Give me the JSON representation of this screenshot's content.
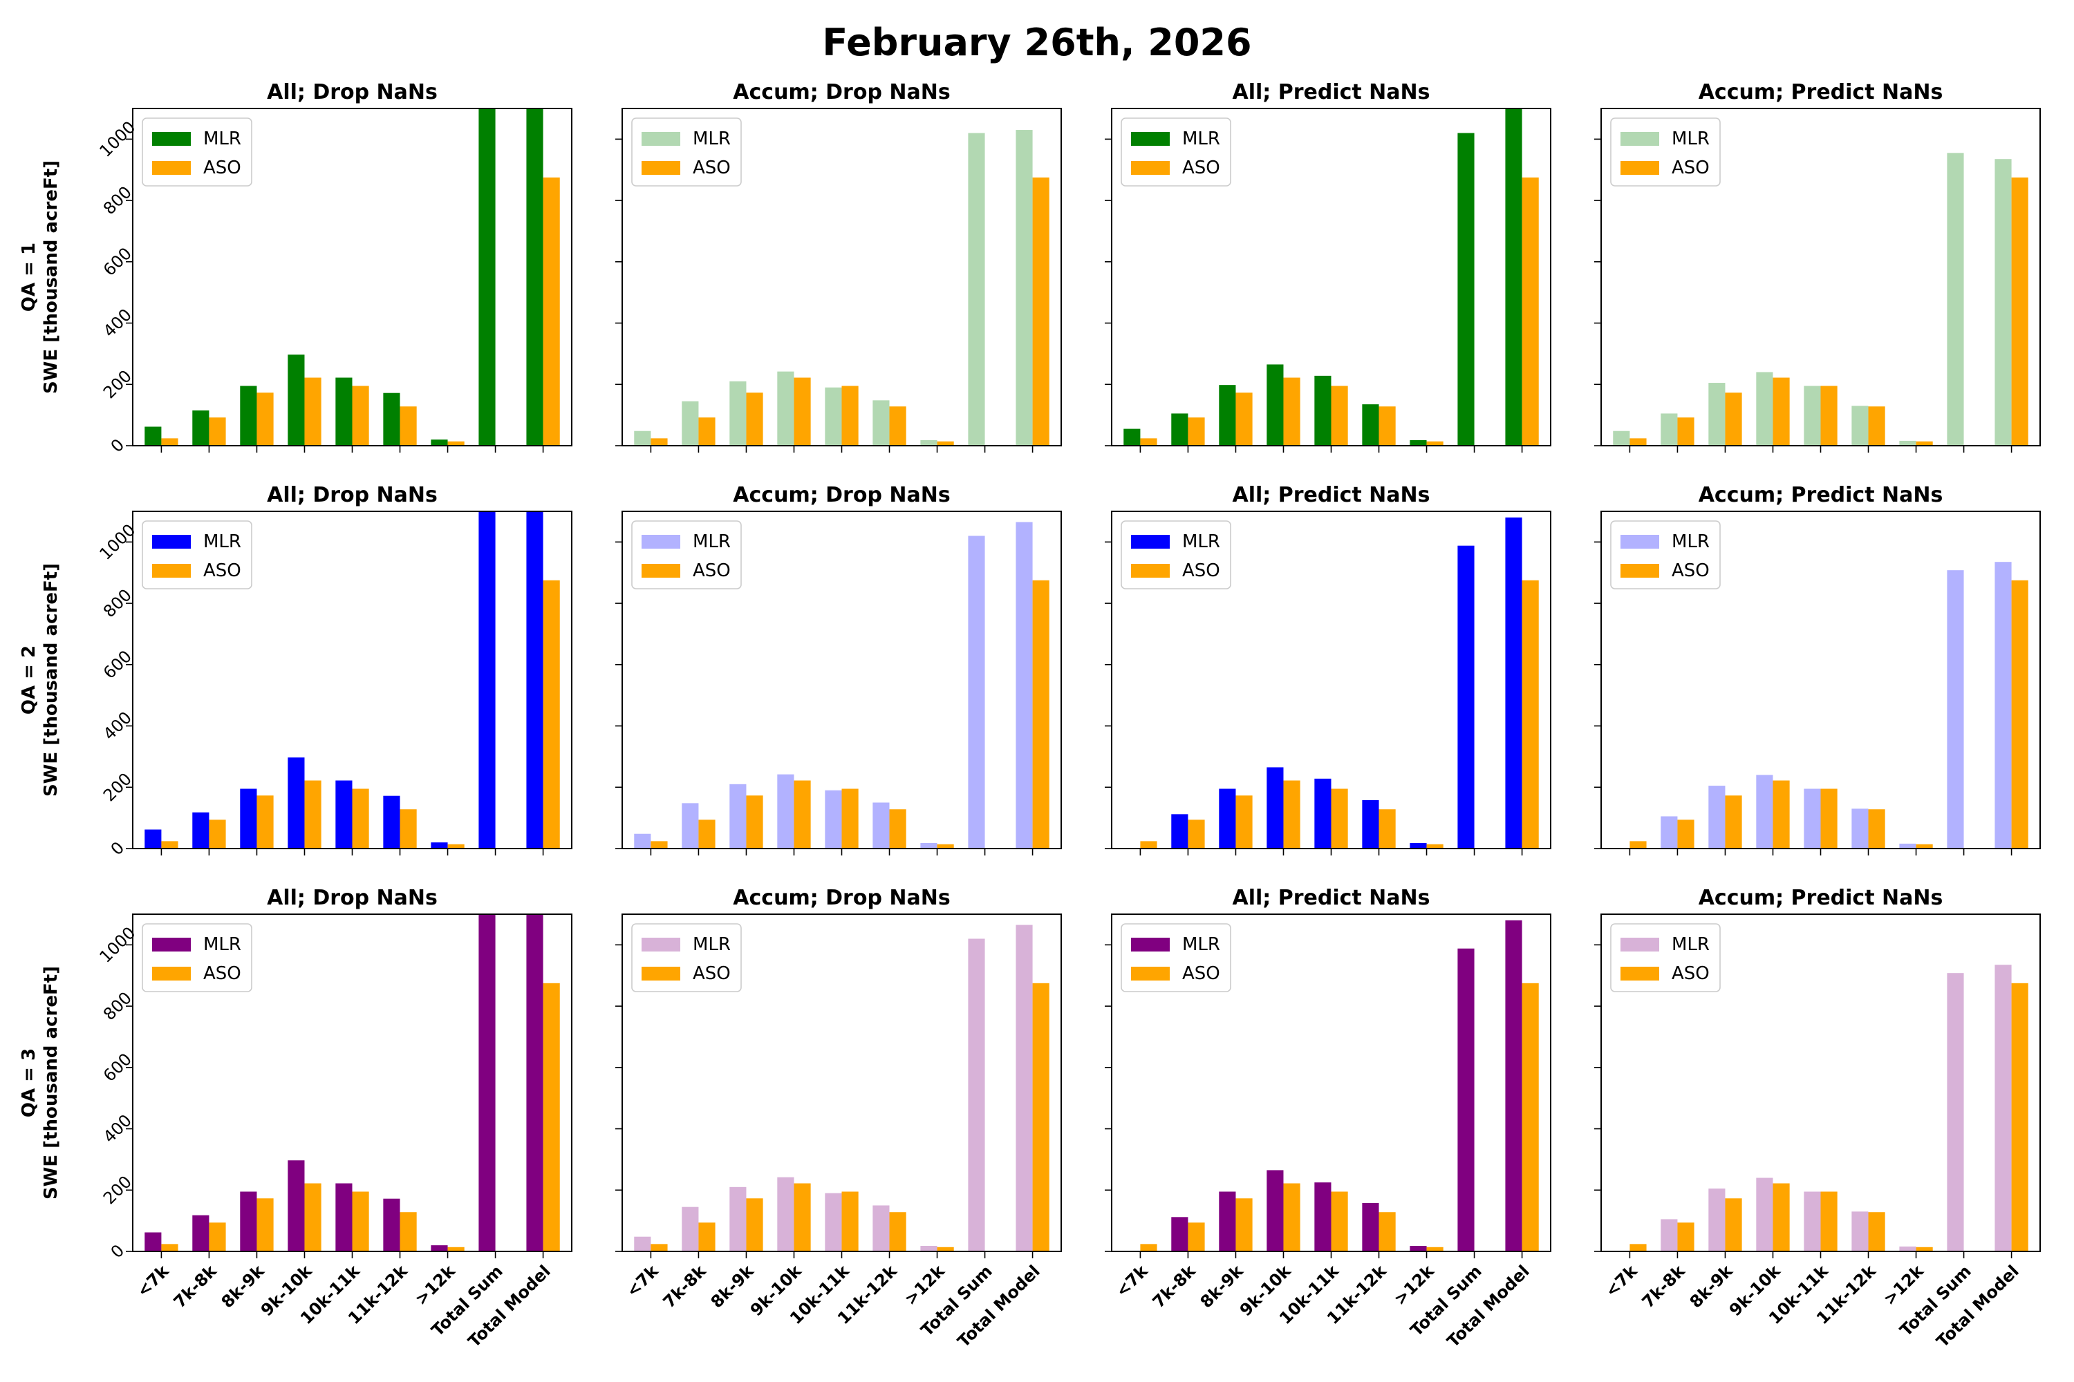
{
  "figure": {
    "title": "February 26th, 2026",
    "legend_labels": {
      "mlr": "MLR",
      "aso": "ASO"
    },
    "row_labels": [
      [
        "QA = 1",
        "SWE [thousand acreFt]"
      ],
      [
        "QA = 2",
        "SWE [thousand acreFt]"
      ],
      [
        "QA = 3",
        "SWE [thousand acreFt]"
      ]
    ],
    "column_titles": [
      "All; Drop NaNs",
      "Accum; Drop NaNs",
      "All; Predict NaNs",
      "Accum; Predict NaNs"
    ],
    "colors": {
      "aso": "#ffa500",
      "mlr_rows_dark": [
        "#008000",
        "#0000ff",
        "#800080"
      ],
      "mlr_rows_light": [
        "#b2d8b2",
        "#b2b2ff",
        "#d8b2d8"
      ]
    }
  },
  "chart_data": {
    "type": "bar",
    "categories": [
      "<7k",
      "7k-8k",
      "8k-9k",
      "9k-10k",
      "10k-11k",
      "11k-12k",
      ">12k",
      "Total Sum",
      "Total Model"
    ],
    "ylim": [
      0,
      1100
    ],
    "yticks": [
      0,
      200,
      400,
      600,
      800,
      1000
    ],
    "ylabel": "SWE [thousand acreFt]",
    "legend_position": "upper-left",
    "grid": false,
    "panels": [
      {
        "row": 0,
        "col": 0,
        "title": "All; Drop NaNs",
        "mlr_tone": "dark",
        "series": [
          {
            "name": "MLR",
            "values": [
              62,
              115,
              195,
              297,
              222,
              172,
              20,
              1100,
              1100
            ]
          },
          {
            "name": "ASO",
            "values": [
              24,
              92,
              173,
              222,
              195,
              128,
              14,
              0,
              875
            ]
          }
        ]
      },
      {
        "row": 0,
        "col": 1,
        "title": "Accum; Drop NaNs",
        "mlr_tone": "light",
        "series": [
          {
            "name": "MLR",
            "values": [
              48,
              145,
              210,
              242,
              190,
              148,
              18,
              1020,
              1030
            ]
          },
          {
            "name": "ASO",
            "values": [
              24,
              92,
              173,
              222,
              195,
              128,
              14,
              0,
              875
            ]
          }
        ]
      },
      {
        "row": 0,
        "col": 2,
        "title": "All; Predict NaNs",
        "mlr_tone": "dark",
        "series": [
          {
            "name": "MLR",
            "values": [
              55,
              105,
              198,
              265,
              228,
              135,
              18,
              1020,
              1100
            ]
          },
          {
            "name": "ASO",
            "values": [
              24,
              92,
              173,
              222,
              195,
              128,
              14,
              0,
              875
            ]
          }
        ]
      },
      {
        "row": 0,
        "col": 3,
        "title": "Accum; Predict NaNs",
        "mlr_tone": "light",
        "series": [
          {
            "name": "MLR",
            "values": [
              48,
              105,
              205,
              240,
              195,
              130,
              16,
              955,
              935
            ]
          },
          {
            "name": "ASO",
            "values": [
              24,
              92,
              173,
              222,
              195,
              128,
              14,
              0,
              875
            ]
          }
        ]
      },
      {
        "row": 1,
        "col": 0,
        "title": "All; Drop NaNs",
        "mlr_tone": "dark",
        "series": [
          {
            "name": "MLR",
            "values": [
              62,
              118,
              195,
              297,
              222,
              172,
              20,
              1100,
              1100
            ]
          },
          {
            "name": "ASO",
            "values": [
              24,
              94,
              173,
              222,
              195,
              128,
              14,
              0,
              875
            ]
          }
        ]
      },
      {
        "row": 1,
        "col": 1,
        "title": "Accum; Drop NaNs",
        "mlr_tone": "light",
        "series": [
          {
            "name": "MLR",
            "values": [
              48,
              148,
              210,
              242,
              190,
              150,
              18,
              1020,
              1065
            ]
          },
          {
            "name": "ASO",
            "values": [
              24,
              94,
              173,
              222,
              195,
              128,
              14,
              0,
              875
            ]
          }
        ]
      },
      {
        "row": 1,
        "col": 2,
        "title": "All; Predict NaNs",
        "mlr_tone": "dark",
        "series": [
          {
            "name": "MLR",
            "values": [
              0,
              112,
              195,
              265,
              228,
              158,
              18,
              988,
              1080
            ]
          },
          {
            "name": "ASO",
            "values": [
              24,
              94,
              173,
              222,
              195,
              128,
              14,
              0,
              875
            ]
          }
        ]
      },
      {
        "row": 1,
        "col": 3,
        "title": "Accum; Predict NaNs",
        "mlr_tone": "light",
        "series": [
          {
            "name": "MLR",
            "values": [
              0,
              105,
              205,
              240,
              195,
              130,
              16,
              908,
              935
            ]
          },
          {
            "name": "ASO",
            "values": [
              24,
              94,
              173,
              222,
              195,
              128,
              14,
              0,
              875
            ]
          }
        ]
      },
      {
        "row": 2,
        "col": 0,
        "title": "All; Drop NaNs",
        "mlr_tone": "dark",
        "series": [
          {
            "name": "MLR",
            "values": [
              62,
              118,
              195,
              297,
              222,
              172,
              20,
              1100,
              1100
            ]
          },
          {
            "name": "ASO",
            "values": [
              24,
              94,
              173,
              222,
              195,
              128,
              14,
              0,
              875
            ]
          }
        ]
      },
      {
        "row": 2,
        "col": 1,
        "title": "Accum; Drop NaNs",
        "mlr_tone": "light",
        "series": [
          {
            "name": "MLR",
            "values": [
              48,
              145,
              210,
              242,
              190,
              150,
              18,
              1020,
              1065
            ]
          },
          {
            "name": "ASO",
            "values": [
              24,
              94,
              173,
              222,
              195,
              128,
              14,
              0,
              875
            ]
          }
        ]
      },
      {
        "row": 2,
        "col": 2,
        "title": "All; Predict NaNs",
        "mlr_tone": "dark",
        "series": [
          {
            "name": "MLR",
            "values": [
              0,
              112,
              195,
              265,
              225,
              158,
              18,
              988,
              1080
            ]
          },
          {
            "name": "ASO",
            "values": [
              24,
              94,
              173,
              222,
              195,
              128,
              14,
              0,
              875
            ]
          }
        ]
      },
      {
        "row": 2,
        "col": 3,
        "title": "Accum; Predict NaNs",
        "mlr_tone": "light",
        "series": [
          {
            "name": "MLR",
            "values": [
              0,
              105,
              205,
              240,
              195,
              130,
              16,
              908,
              935
            ]
          },
          {
            "name": "ASO",
            "values": [
              24,
              94,
              173,
              222,
              195,
              128,
              14,
              0,
              875
            ]
          }
        ]
      }
    ]
  }
}
